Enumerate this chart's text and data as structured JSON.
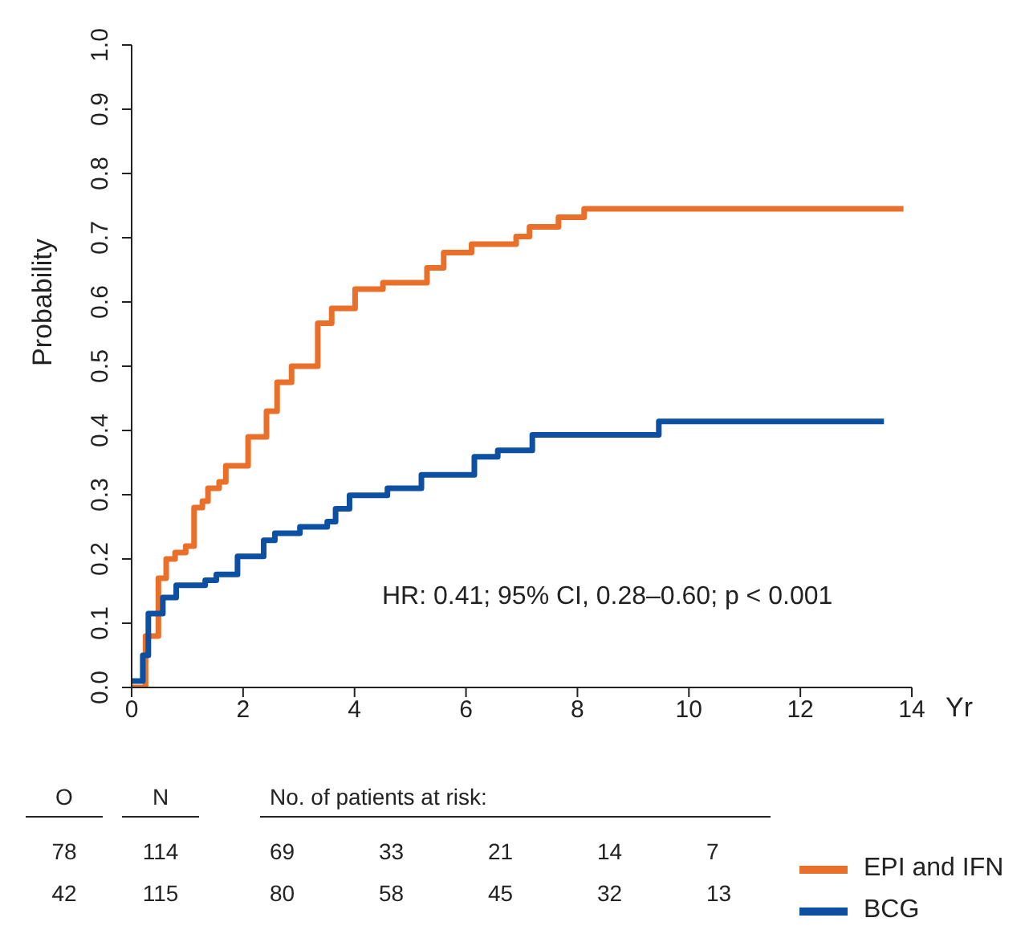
{
  "chart_data": {
    "type": "step",
    "xlabel": "Yr",
    "ylabel": "Probability",
    "xlim": [
      0,
      14
    ],
    "xticks": [
      0,
      2,
      4,
      6,
      8,
      10,
      12,
      14
    ],
    "ylim": [
      0,
      1
    ],
    "yticks": [
      {
        "value": 0,
        "label": "0.0"
      },
      {
        "value": 0.1,
        "label": "0.1"
      },
      {
        "value": 0.2,
        "label": "0.2"
      },
      {
        "value": 0.3,
        "label": "0.3"
      },
      {
        "value": 0.4,
        "label": "0.4"
      },
      {
        "value": 0.5,
        "label": "0.5"
      },
      {
        "value": 0.6,
        "label": "0.6"
      },
      {
        "value": 0.7,
        "label": "0.7"
      },
      {
        "value": 0.8,
        "label": "0.8"
      },
      {
        "value": 0.9,
        "label": "0.9"
      },
      {
        "value": 1,
        "label": "1.0"
      }
    ],
    "legend": "bottom right",
    "marker": "none",
    "line_style": "solid",
    "series": [
      {
        "name": "EPI and IFN",
        "color": "#e8702a",
        "x": [
          0,
          0.25,
          0.48,
          0.62,
          0.78,
          0.97,
          1.12,
          1.27,
          1.37,
          1.57,
          1.69,
          2.09,
          2.42,
          2.61,
          2.87,
          3.34,
          3.59,
          4.01,
          4.51,
          5.3,
          5.6,
          6.1,
          6.9,
          7.14,
          7.66,
          8.12,
          13.85
        ],
        "values": [
          0,
          0.08,
          0.17,
          0.2,
          0.21,
          0.22,
          0.28,
          0.29,
          0.31,
          0.32,
          0.345,
          0.39,
          0.43,
          0.475,
          0.5,
          0.567,
          0.59,
          0.62,
          0.63,
          0.653,
          0.677,
          0.69,
          0.702,
          0.717,
          0.732,
          0.745,
          0.745
        ]
      },
      {
        "name": "BCG",
        "color": "#0d4fa0",
        "x": [
          0,
          0.2,
          0.3,
          0.56,
          0.8,
          1.32,
          1.52,
          1.9,
          2.37,
          2.57,
          3.02,
          3.51,
          3.66,
          3.91,
          4.59,
          5.2,
          6.15,
          6.57,
          7.19,
          9.46,
          13.5
        ],
        "values": [
          0.01,
          0.05,
          0.115,
          0.14,
          0.159,
          0.167,
          0.176,
          0.204,
          0.229,
          0.24,
          0.25,
          0.258,
          0.278,
          0.299,
          0.31,
          0.331,
          0.359,
          0.369,
          0.393,
          0.414,
          0.414
        ]
      }
    ],
    "annotations": [
      "HR: 0.41; 95% CI, 0.28–0.60; p < 0.001",
      "O",
      "N",
      "No. of patients at risk:",
      "78",
      "114",
      "69",
      "33",
      "21",
      "14",
      "7",
      "42",
      "115",
      "80",
      "58",
      "45",
      "32",
      "13"
    ]
  }
}
